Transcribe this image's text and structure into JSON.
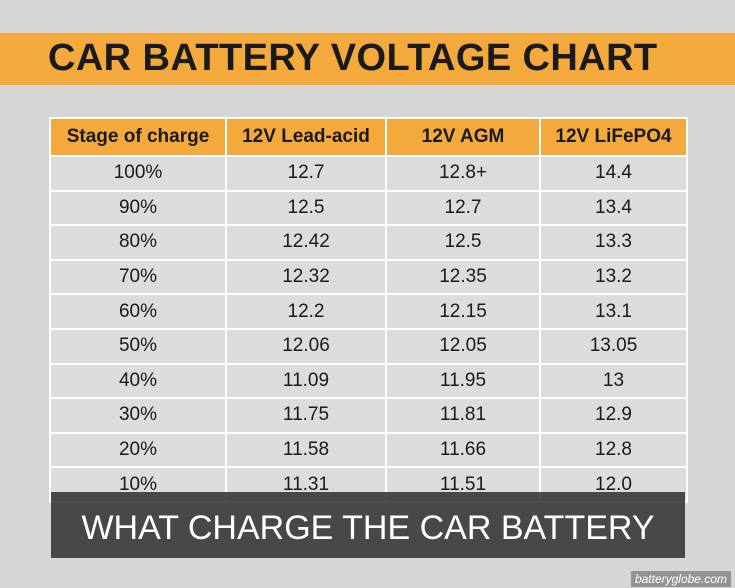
{
  "title": "CAR BATTERY VOLTAGE CHART",
  "table": {
    "headers": [
      "Stage of charge",
      "12V Lead-acid",
      "12V AGM",
      "12V LiFePO4"
    ],
    "rows": [
      [
        "100%",
        "12.7",
        "12.8+",
        "14.4"
      ],
      [
        "90%",
        "12.5",
        "12.7",
        "13.4"
      ],
      [
        "80%",
        "12.42",
        "12.5",
        "13.3"
      ],
      [
        "70%",
        "12.32",
        "12.35",
        "13.2"
      ],
      [
        "60%",
        "12.2",
        "12.15",
        "13.1"
      ],
      [
        "50%",
        "12.06",
        "12.05",
        "13.05"
      ],
      [
        "40%",
        "11.09",
        "11.95",
        "13"
      ],
      [
        "30%",
        "11.75",
        "11.81",
        "12.9"
      ],
      [
        "20%",
        "11.58",
        "11.66",
        "12.8"
      ],
      [
        "10%",
        "11.31",
        "11.51",
        "12.0"
      ]
    ]
  },
  "caption": "WHAT CHARGE THE CAR BATTERY",
  "watermark": "batteryglobe.com",
  "colors": {
    "header_orange": "#f3a93b",
    "background_gray": "#d6d6d6",
    "cell_gray": "#dcdcdc",
    "caption_overlay": "#282828"
  }
}
